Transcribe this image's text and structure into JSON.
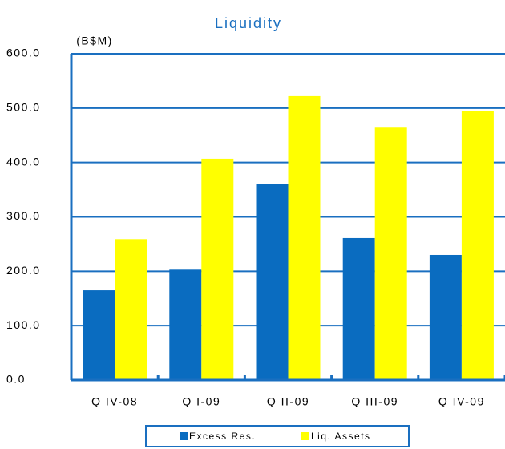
{
  "chart_data": {
    "type": "bar",
    "title": "Liquidity",
    "y_label": "(B$M)",
    "categories": [
      "Q IV-08",
      "Q I-09",
      "Q II-09",
      "Q III-09",
      "Q IV-09"
    ],
    "series": [
      {
        "name": "Excess Res.",
        "color": "#0a6cc0",
        "values": [
          165,
          203,
          361,
          261,
          230
        ]
      },
      {
        "name": "Liq. Assets",
        "color": "#ffff00",
        "values": [
          259,
          407,
          522,
          464,
          495
        ]
      }
    ],
    "ylim": [
      0,
      600
    ],
    "yticks": [
      {
        "value": 0,
        "label": "0.0"
      },
      {
        "value": 100,
        "label": "100.0"
      },
      {
        "value": 200,
        "label": "200.0"
      },
      {
        "value": 300,
        "label": "300.0"
      },
      {
        "value": 400,
        "label": "400.0"
      },
      {
        "value": 500,
        "label": "500.0"
      },
      {
        "value": 600,
        "label": "600.0"
      }
    ],
    "grid": true
  }
}
